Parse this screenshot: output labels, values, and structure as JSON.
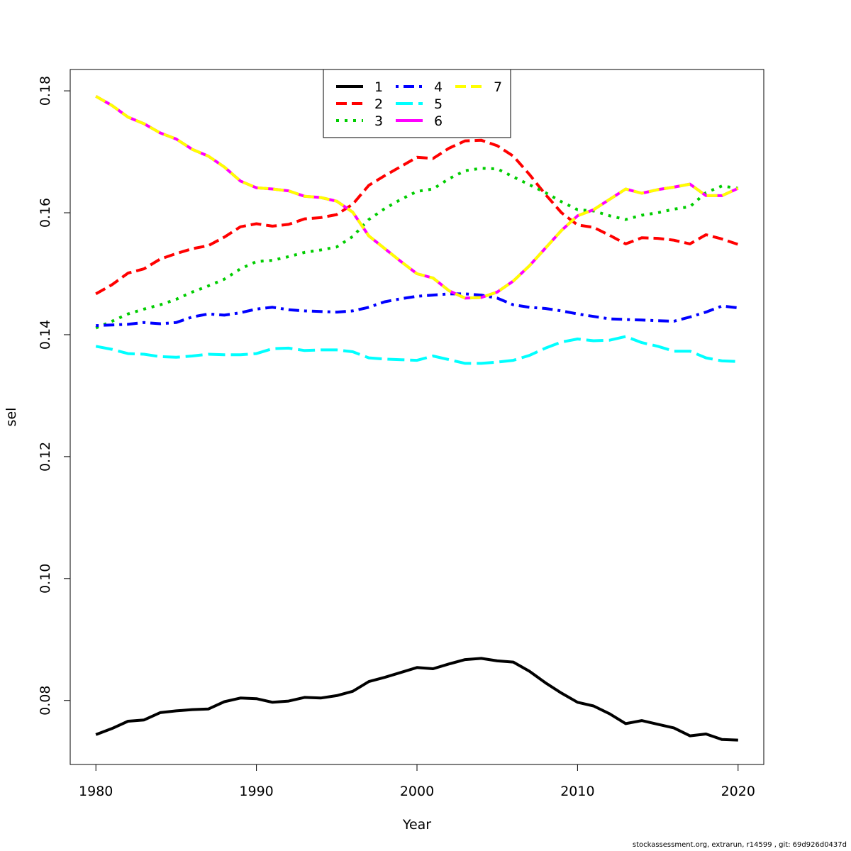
{
  "chart_data": {
    "type": "line",
    "title": "",
    "xlabel": "Year",
    "ylabel": "sel",
    "xlim": [
      1978.4,
      2021.6
    ],
    "ylim": [
      0.0695,
      0.1835
    ],
    "x_ticks": [
      1980,
      1990,
      2000,
      2010,
      2020
    ],
    "x_tick_labels": [
      "1980",
      "1990",
      "2000",
      "2010",
      "2020"
    ],
    "y_ticks": [
      0.08,
      0.1,
      0.12,
      0.14,
      0.16,
      0.18
    ],
    "y_tick_labels": [
      "0.08",
      "0.10",
      "0.12",
      "0.14",
      "0.16",
      "0.18"
    ],
    "grid": false,
    "legend_position": "top-center",
    "legend_columns": 3,
    "x": [
      1980,
      1981,
      1982,
      1983,
      1984,
      1985,
      1986,
      1987,
      1988,
      1989,
      1990,
      1991,
      1992,
      1993,
      1994,
      1995,
      1996,
      1997,
      1998,
      1999,
      2000,
      2001,
      2002,
      2003,
      2004,
      2005,
      2006,
      2007,
      2008,
      2009,
      2010,
      2011,
      2012,
      2013,
      2014,
      2015,
      2016,
      2017,
      2018,
      2019,
      2020
    ],
    "series": [
      {
        "name": "1",
        "color": "#000000",
        "dash": "solid",
        "values": [
          0.0744,
          0.0754,
          0.0766,
          0.0768,
          0.078,
          0.0783,
          0.0785,
          0.0786,
          0.0798,
          0.0804,
          0.0803,
          0.0797,
          0.0799,
          0.0805,
          0.0804,
          0.0808,
          0.0815,
          0.0831,
          0.0838,
          0.0846,
          0.0854,
          0.0852,
          0.086,
          0.0867,
          0.0869,
          0.0865,
          0.0863,
          0.0848,
          0.0829,
          0.0812,
          0.0797,
          0.0791,
          0.0778,
          0.0762,
          0.0767,
          0.0761,
          0.0755,
          0.0742,
          0.0745,
          0.0736,
          0.0735
        ]
      },
      {
        "name": "2",
        "color": "#ff0000",
        "dash": "dashed",
        "values": [
          0.1467,
          0.1482,
          0.1501,
          0.1508,
          0.1524,
          0.1533,
          0.1541,
          0.1546,
          0.156,
          0.1577,
          0.1582,
          0.1578,
          0.1581,
          0.159,
          0.1592,
          0.1597,
          0.1614,
          0.1645,
          0.1661,
          0.1676,
          0.1691,
          0.1689,
          0.1706,
          0.1718,
          0.1719,
          0.171,
          0.1693,
          0.1663,
          0.163,
          0.16,
          0.158,
          0.1576,
          0.1563,
          0.1549,
          0.1559,
          0.1558,
          0.1555,
          0.1549,
          0.1564,
          0.1557,
          0.1548
        ]
      },
      {
        "name": "3",
        "color": "#00cd00",
        "dash": "dotted",
        "values": [
          0.1411,
          0.1422,
          0.1434,
          0.1442,
          0.1449,
          0.1458,
          0.147,
          0.148,
          0.1491,
          0.1508,
          0.152,
          0.1522,
          0.1528,
          0.1535,
          0.1539,
          0.1544,
          0.1561,
          0.1589,
          0.1607,
          0.1622,
          0.1635,
          0.1639,
          0.1656,
          0.1669,
          0.1673,
          0.1672,
          0.1659,
          0.1646,
          0.1633,
          0.1618,
          0.1605,
          0.1603,
          0.1595,
          0.1589,
          0.1596,
          0.16,
          0.1606,
          0.161,
          0.1633,
          0.1644,
          0.164
        ]
      },
      {
        "name": "4",
        "color": "#0000ff",
        "dash": "dashdot",
        "values": [
          0.1415,
          0.1416,
          0.1417,
          0.142,
          0.1418,
          0.142,
          0.1429,
          0.1434,
          0.1432,
          0.1436,
          0.1442,
          0.1445,
          0.1441,
          0.1439,
          0.1438,
          0.1437,
          0.1439,
          0.1445,
          0.1454,
          0.1459,
          0.1463,
          0.1465,
          0.1467,
          0.1467,
          0.1465,
          0.146,
          0.1449,
          0.1445,
          0.1443,
          0.1439,
          0.1434,
          0.143,
          0.1426,
          0.1425,
          0.1424,
          0.1423,
          0.1422,
          0.1429,
          0.1437,
          0.1447,
          0.1444
        ]
      },
      {
        "name": "5",
        "color": "#00ffff",
        "dash": "longdash",
        "values": [
          0.1381,
          0.1376,
          0.1369,
          0.1368,
          0.1364,
          0.1363,
          0.1365,
          0.1368,
          0.1367,
          0.1367,
          0.1369,
          0.1377,
          0.1378,
          0.1374,
          0.1375,
          0.1375,
          0.1372,
          0.1362,
          0.136,
          0.1359,
          0.1358,
          0.1365,
          0.1359,
          0.1353,
          0.1353,
          0.1355,
          0.1358,
          0.1366,
          0.1378,
          0.1388,
          0.1393,
          0.139,
          0.1391,
          0.1397,
          0.1387,
          0.1381,
          0.1373,
          0.1373,
          0.1362,
          0.1357,
          0.1356
        ]
      },
      {
        "name": "6",
        "color": "#ff00ff",
        "dash": "solid",
        "values": [
          0.1791,
          0.1776,
          0.1757,
          0.1746,
          0.1731,
          0.1721,
          0.1704,
          0.1693,
          0.1675,
          0.1652,
          0.1641,
          0.1639,
          0.1636,
          0.1627,
          0.1625,
          0.1619,
          0.1601,
          0.1562,
          0.1541,
          0.152,
          0.15,
          0.1493,
          0.1472,
          0.146,
          0.1461,
          0.147,
          0.1488,
          0.1513,
          0.1542,
          0.1571,
          0.1595,
          0.1605,
          0.1622,
          0.1639,
          0.1632,
          0.1638,
          0.1642,
          0.1647,
          0.1628,
          0.1628,
          0.164
        ]
      },
      {
        "name": "7",
        "color": "#ffff00",
        "dash": "dashed",
        "values": [
          0.1791,
          0.1776,
          0.1757,
          0.1746,
          0.1731,
          0.1721,
          0.1704,
          0.1693,
          0.1675,
          0.1652,
          0.1641,
          0.1639,
          0.1636,
          0.1627,
          0.1625,
          0.1619,
          0.1601,
          0.1562,
          0.1541,
          0.152,
          0.15,
          0.1493,
          0.1472,
          0.146,
          0.1461,
          0.147,
          0.1488,
          0.1513,
          0.1542,
          0.1571,
          0.1595,
          0.1605,
          0.1622,
          0.1639,
          0.1632,
          0.1638,
          0.1642,
          0.1647,
          0.1628,
          0.1628,
          0.164
        ]
      }
    ]
  },
  "footer": "stockassessment.org, extrarun, r14599 , git: 69d926d0437d"
}
